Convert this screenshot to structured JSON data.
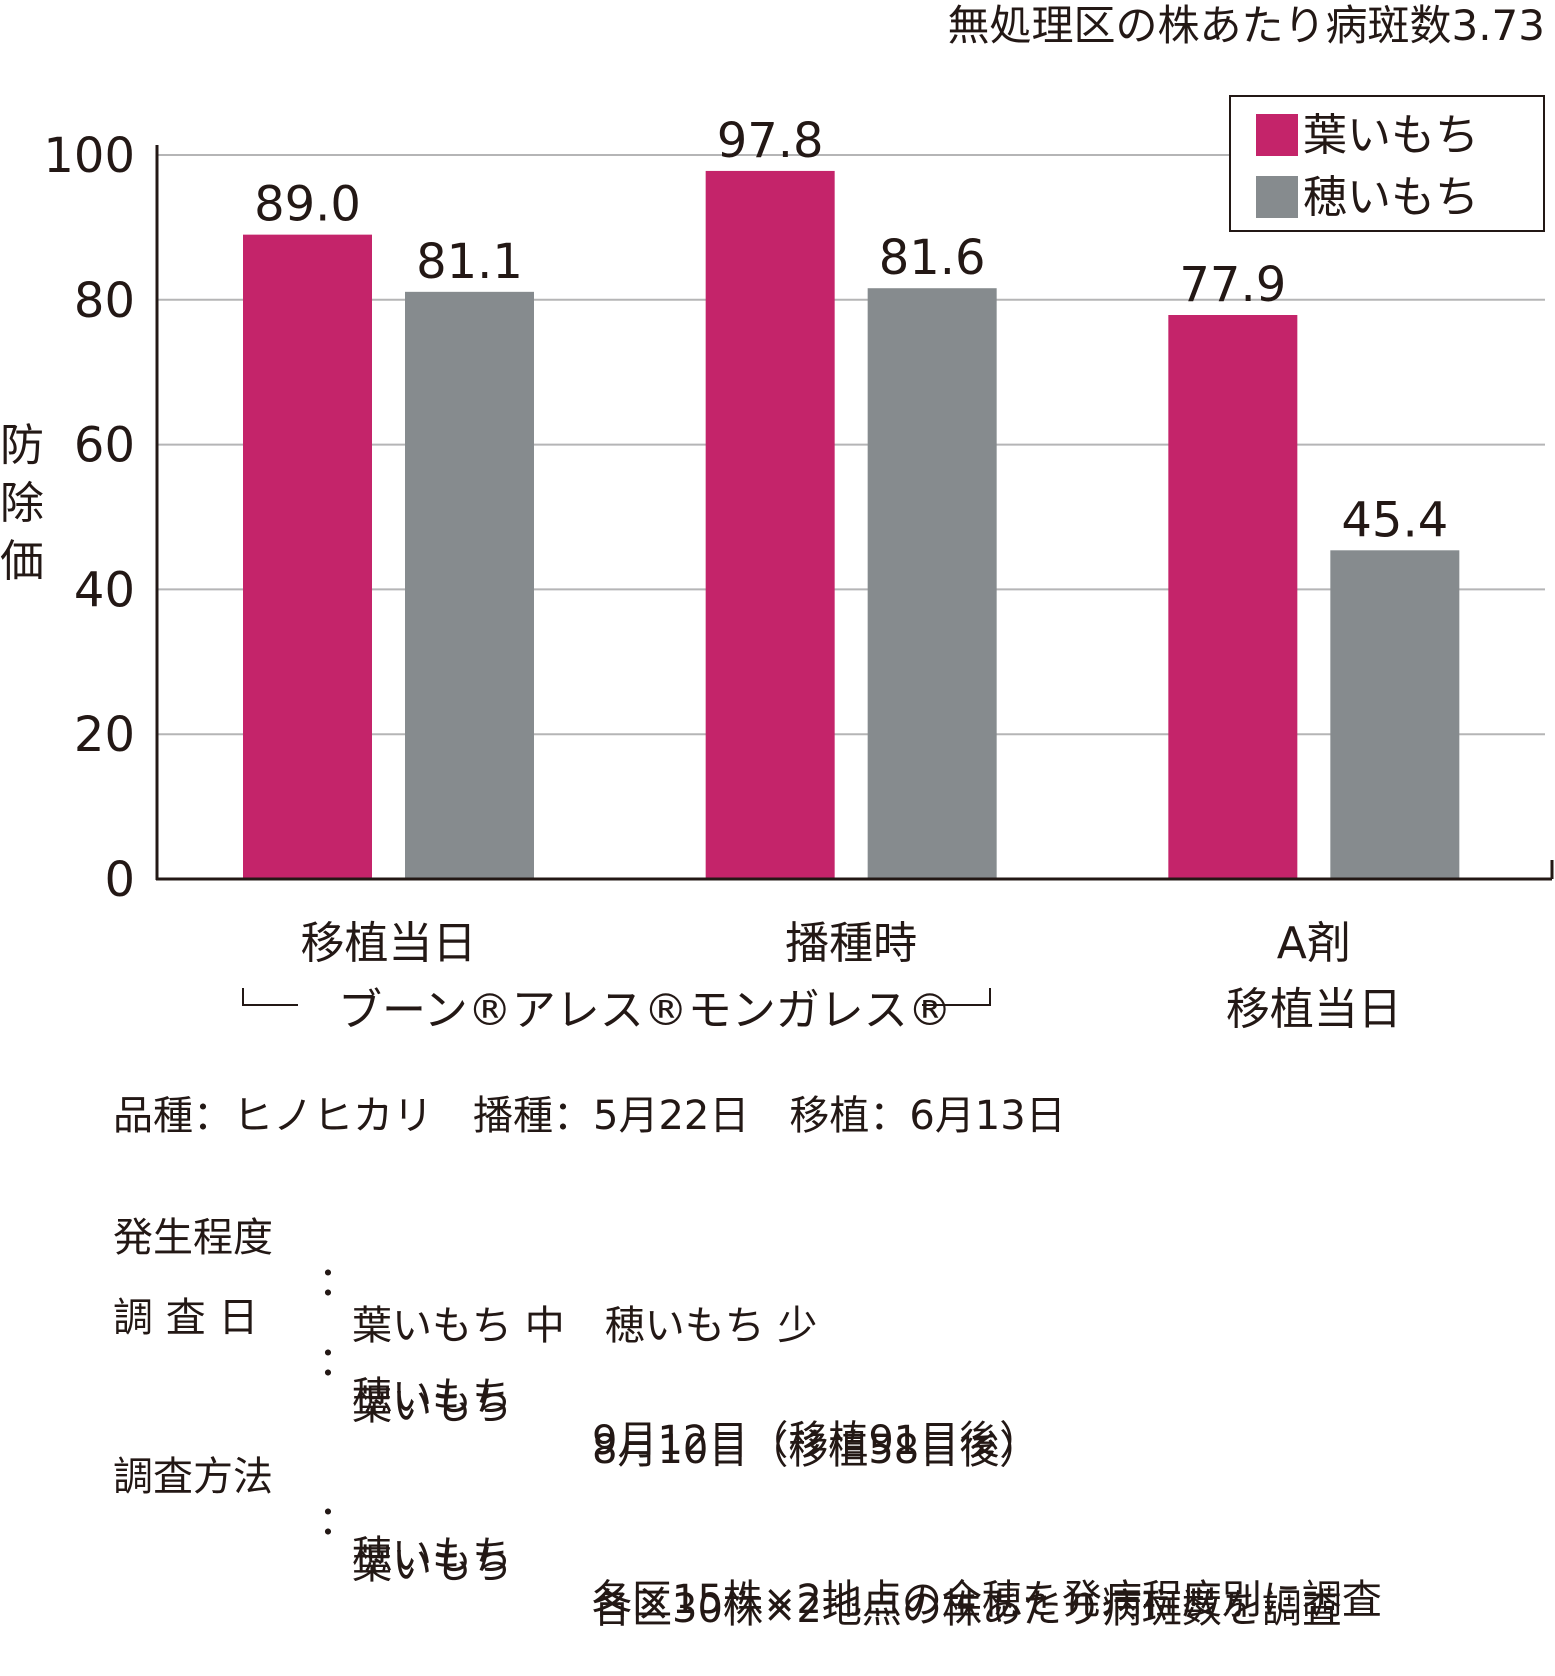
{
  "chart_data": {
    "type": "bar",
    "title": "無処理区の株あたり病斑数3.73",
    "ylabel": "防除価",
    "ylim": [
      0,
      100
    ],
    "yticks": [
      0,
      20,
      40,
      60,
      80,
      100
    ],
    "grid": true,
    "legend_position": "top-right",
    "categories": [
      "移植当日",
      "播種時",
      "A剤 移植当日"
    ],
    "category_lines": [
      [
        "移植当日"
      ],
      [
        "播種時"
      ],
      [
        "A剤",
        "移植当日"
      ]
    ],
    "group_bracket_label": "ブーン®アレス®モンガレス®",
    "series": [
      {
        "name": "葉いもち",
        "color": "#c4246a",
        "values": [
          89.0,
          97.8,
          77.9
        ],
        "labels": [
          "89.0",
          "97.8",
          "77.9"
        ]
      },
      {
        "name": "穂いもち",
        "color": "#868b8e",
        "values": [
          81.1,
          81.6,
          45.4
        ],
        "labels": [
          "81.1",
          "81.6",
          "45.4"
        ]
      }
    ]
  },
  "notes": {
    "row1": "品種：ヒノヒカリ　播種：5月22日　移植：6月13日",
    "row2_label": "発生程度",
    "row2_value": "葉いもち 中　穂いもち 少",
    "row3_label": "調 査 日",
    "row3_a_name": "葉いもち",
    "row3_a_value": "8月10日（移植58日後）",
    "row3_b_name": "穂いもち",
    "row3_b_value": "9月12日（移植91日後）",
    "row4_label": "調査方法",
    "row4_a_name": "葉いもち",
    "row4_a_value": "各区30株×2地点の株あたり病斑数を調査",
    "row4_b_name": "穂いもち",
    "row4_b_value": "各区15株×2地点の全穂を発病程度別に調査",
    "colon": "："
  }
}
